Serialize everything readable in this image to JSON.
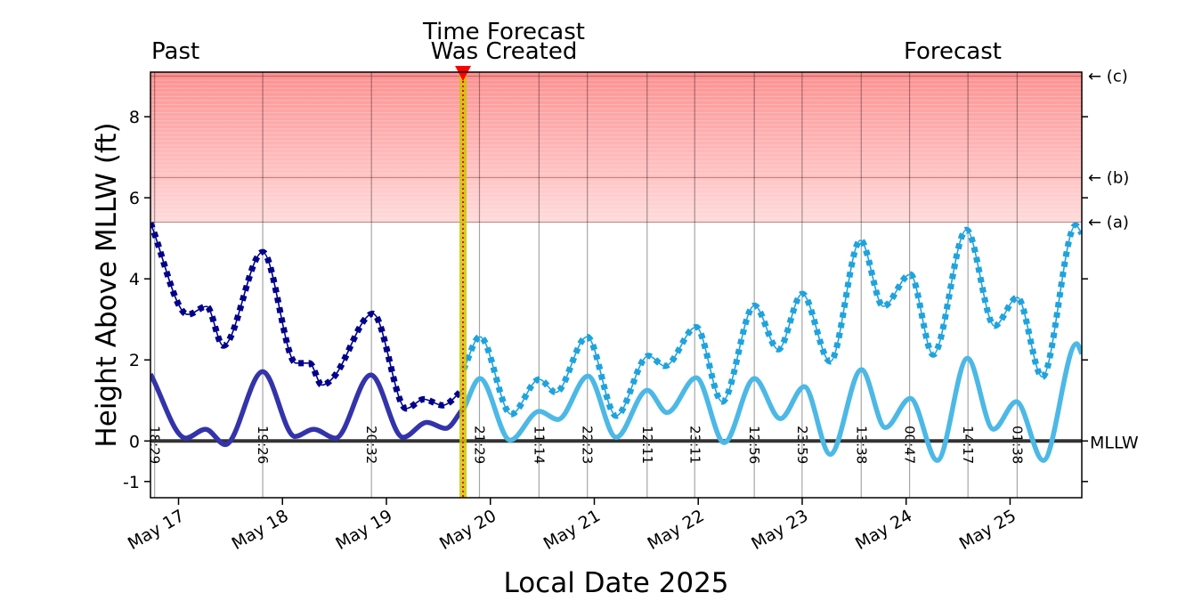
{
  "chart_data": {
    "type": "line",
    "title_left": "Past",
    "title_left_color": "#00008b",
    "title_right": "Forecast",
    "title_right_color": "#1fa3dd",
    "forecast_label": [
      "Time Forecast",
      "Was Created"
    ],
    "xlabel": "Local Date 2025",
    "ylabel": "Height Above MLLW (ft)",
    "xlim": [
      16.73,
      25.69
    ],
    "ylim": [
      -1.4,
      9.1
    ],
    "xticks": [
      {
        "value": 17,
        "label": "May 17"
      },
      {
        "value": 18,
        "label": "May 18"
      },
      {
        "value": 19,
        "label": "May 19"
      },
      {
        "value": 20,
        "label": "May 20"
      },
      {
        "value": 21,
        "label": "May 21"
      },
      {
        "value": 22,
        "label": "May 22"
      },
      {
        "value": 23,
        "label": "May 23"
      },
      {
        "value": 24,
        "label": "May 24"
      },
      {
        "value": 25,
        "label": "May 25"
      }
    ],
    "yticks": [
      -1,
      0,
      2,
      4,
      6,
      8
    ],
    "forecast_time": 19.737,
    "datum": {
      "value": 0,
      "label": "MLLW"
    },
    "thresholds": [
      {
        "value": 5.4,
        "label": "← (a)"
      },
      {
        "value": 6.5,
        "label": "← (b)"
      },
      {
        "value": 9.0,
        "label": "← (c)"
      }
    ],
    "threshold_color": "#ff6b6b",
    "tide_times": [
      {
        "value": 16.77,
        "label": "18:29"
      },
      {
        "value": 17.81,
        "label": "19:26"
      },
      {
        "value": 18.856,
        "label": "20:32"
      },
      {
        "value": 19.895,
        "label": "21:29"
      },
      {
        "value": 20.468,
        "label": "11:14"
      },
      {
        "value": 20.933,
        "label": "22:23"
      },
      {
        "value": 21.508,
        "label": "12:11"
      },
      {
        "value": 21.966,
        "label": "23:11"
      },
      {
        "value": 22.539,
        "label": "12:56"
      },
      {
        "value": 22.999,
        "label": "23:59"
      },
      {
        "value": 23.568,
        "label": "13:38"
      },
      {
        "value": 24.033,
        "label": "00:47"
      },
      {
        "value": 24.595,
        "label": "14:17"
      },
      {
        "value": 25.068,
        "label": "01:38"
      }
    ],
    "series": [
      {
        "color": "#00008b",
        "style": "dotted",
        "x": [
          16.73,
          17.09,
          17.27,
          17.43,
          17.81,
          18.13,
          18.26,
          18.38,
          18.5,
          18.87,
          19.19,
          19.36,
          19.54,
          19.74
        ],
        "values": [
          5.38,
          3.12,
          3.32,
          2.35,
          4.66,
          1.92,
          1.92,
          1.38,
          1.6,
          3.14,
          0.8,
          1.03,
          0.88,
          1.28
        ]
      },
      {
        "color": "#1fa3dd",
        "style": "dotted",
        "x": [
          19.74,
          19.9,
          20.2,
          20.47,
          20.63,
          20.93,
          21.21,
          21.52,
          21.68,
          21.98,
          22.23,
          22.54,
          22.77,
          23.0,
          23.27,
          23.56,
          23.78,
          24.04,
          24.26,
          24.58,
          24.85,
          25.07,
          25.31,
          25.63,
          25.69
        ],
        "values": [
          1.76,
          2.57,
          0.66,
          1.52,
          1.2,
          2.57,
          0.62,
          2.1,
          1.85,
          2.81,
          0.97,
          3.34,
          2.26,
          3.63,
          1.96,
          4.95,
          3.32,
          4.11,
          2.13,
          5.21,
          2.84,
          3.54,
          1.58,
          5.32,
          5.12
        ]
      },
      {
        "color": "#3333aa",
        "style": "thick",
        "x": [
          16.73,
          17.07,
          17.26,
          17.45,
          17.81,
          18.12,
          18.3,
          18.51,
          18.85,
          19.16,
          19.39,
          19.57,
          19.74
        ],
        "values": [
          1.65,
          0.07,
          0.29,
          -0.09,
          1.71,
          0.11,
          0.29,
          0.07,
          1.63,
          0.09,
          0.46,
          0.31,
          0.81
        ]
      },
      {
        "color": "#4cb8e6",
        "style": "thick",
        "x": [
          19.74,
          19.9,
          20.19,
          20.47,
          20.65,
          20.94,
          21.21,
          21.51,
          21.7,
          21.98,
          22.25,
          22.54,
          22.79,
          23.02,
          23.27,
          23.57,
          23.8,
          24.04,
          24.3,
          24.59,
          24.84,
          25.06,
          25.32,
          25.64,
          25.69
        ],
        "values": [
          0.77,
          1.54,
          0.02,
          0.73,
          0.53,
          1.6,
          0.09,
          1.25,
          0.7,
          1.56,
          -0.04,
          1.54,
          0.55,
          1.34,
          -0.33,
          1.76,
          0.33,
          1.05,
          -0.48,
          2.04,
          0.29,
          0.97,
          -0.48,
          2.4,
          2.15
        ]
      }
    ]
  }
}
